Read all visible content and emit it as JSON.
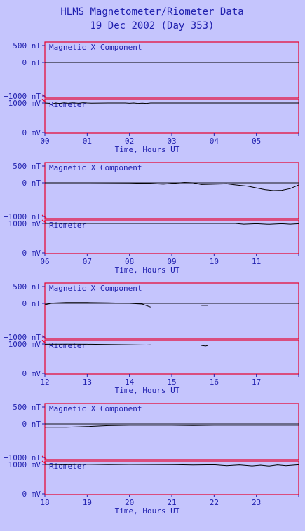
{
  "chart_data": {
    "type": "line",
    "title": "HLMS Magnetometer/Riometer Data",
    "subtitle": "19 Dec 2002 (Day 353)",
    "xlabel": "Time, Hours UT",
    "panel_labels": {
      "magnetic": "Magnetic X Component",
      "riometer": "Riometer"
    },
    "mag_ticks": [
      "500 nT",
      "0 nT",
      "−1000 nT"
    ],
    "mag_ylim": [
      -1000,
      500
    ],
    "rio_ticks": [
      "1000 mV",
      "0 mV"
    ],
    "rio_ylim": [
      0,
      1000
    ],
    "colors": {
      "frame": "#e8002a",
      "text": "#1f1fae",
      "trace": "#000000",
      "background": "#c5c5fd"
    },
    "panels": [
      {
        "hours": [
          "00",
          "01",
          "02",
          "03",
          "04",
          "05"
        ],
        "x_range": [
          0,
          6
        ],
        "magnetic_x": [
          [
            0,
            0
          ],
          [
            6,
            0
          ]
        ],
        "riometer": [
          [
            0.0,
            1000
          ],
          [
            0.1,
            990
          ],
          [
            0.15,
            960
          ],
          [
            0.25,
            1000
          ],
          [
            0.35,
            985
          ],
          [
            0.45,
            1005
          ],
          [
            0.55,
            990
          ],
          [
            0.65,
            1005
          ],
          [
            0.8,
            990
          ],
          [
            0.9,
            1010
          ],
          [
            1.0,
            1000
          ],
          [
            1.1,
            995
          ],
          [
            1.5,
            1000
          ],
          [
            1.9,
            1000
          ],
          [
            2.0,
            990
          ],
          [
            2.1,
            1000
          ],
          [
            2.2,
            985
          ],
          [
            2.3,
            995
          ],
          [
            2.4,
            985
          ],
          [
            2.5,
            1000
          ],
          [
            6,
            1000
          ]
        ]
      },
      {
        "hours": [
          "06",
          "07",
          "08",
          "09",
          "10",
          "11"
        ],
        "x_range": [
          6,
          12
        ],
        "magnetic_x": [
          [
            6,
            0
          ],
          [
            7,
            0
          ],
          [
            8,
            -5
          ],
          [
            8.5,
            -20
          ],
          [
            8.8,
            -40
          ],
          [
            9.0,
            -20
          ],
          [
            9.3,
            10
          ],
          [
            9.5,
            0
          ],
          [
            9.7,
            -50
          ],
          [
            10.0,
            -40
          ],
          [
            10.3,
            -30
          ],
          [
            10.5,
            -60
          ],
          [
            10.8,
            -100
          ],
          [
            11.0,
            -150
          ],
          [
            11.2,
            -200
          ],
          [
            11.4,
            -230
          ],
          [
            11.6,
            -220
          ],
          [
            11.8,
            -170
          ],
          [
            11.95,
            -90
          ],
          [
            12,
            -60
          ]
        ],
        "riometer": [
          [
            6,
            1000
          ],
          [
            10.5,
            1000
          ],
          [
            10.7,
            975
          ],
          [
            11.0,
            990
          ],
          [
            11.3,
            970
          ],
          [
            11.6,
            990
          ],
          [
            11.8,
            975
          ],
          [
            12,
            990
          ]
        ]
      },
      {
        "hours": [
          "12",
          "13",
          "14",
          "15",
          "16",
          "17"
        ],
        "x_range": [
          12,
          18
        ],
        "magnetic_x": [
          [
            12,
            -40
          ],
          [
            12.2,
            10
          ],
          [
            12.5,
            25
          ],
          [
            13,
            25
          ],
          [
            13.5,
            15
          ],
          [
            14,
            0
          ],
          [
            14.3,
            -20
          ],
          [
            14.5,
            -110
          ]
        ],
        "magnetic_x_extra": [
          [
            15.7,
            -60
          ],
          [
            15.85,
            -60
          ]
        ],
        "riometer": [
          [
            12,
            990
          ],
          [
            12.5,
            995
          ],
          [
            13,
            990
          ],
          [
            13.5,
            980
          ],
          [
            14,
            975
          ],
          [
            14.4,
            965
          ],
          [
            14.5,
            970
          ]
        ],
        "riometer_extra": [
          [
            15.7,
            950
          ],
          [
            15.8,
            930
          ],
          [
            15.85,
            950
          ]
        ]
      },
      {
        "hours": [
          "18",
          "19",
          "20",
          "21",
          "22",
          "23"
        ],
        "x_range": [
          18,
          24
        ],
        "magnetic_x": [
          [
            18,
            -100
          ],
          [
            18.5,
            -100
          ],
          [
            19,
            -80
          ],
          [
            19.5,
            -50
          ],
          [
            20,
            -40
          ],
          [
            21,
            -40
          ],
          [
            21.5,
            -45
          ],
          [
            22,
            -40
          ],
          [
            24,
            -40
          ]
        ],
        "riometer": [
          [
            18,
            1000
          ],
          [
            18.5,
            990
          ],
          [
            19,
            1005
          ],
          [
            19.5,
            995
          ],
          [
            20,
            1000
          ],
          [
            21,
            995
          ],
          [
            21.5,
            980
          ],
          [
            22,
            990
          ],
          [
            22.3,
            960
          ],
          [
            22.6,
            985
          ],
          [
            22.9,
            950
          ],
          [
            23.1,
            975
          ],
          [
            23.3,
            945
          ],
          [
            23.5,
            985
          ],
          [
            23.7,
            960
          ],
          [
            24,
            990
          ]
        ]
      }
    ]
  }
}
